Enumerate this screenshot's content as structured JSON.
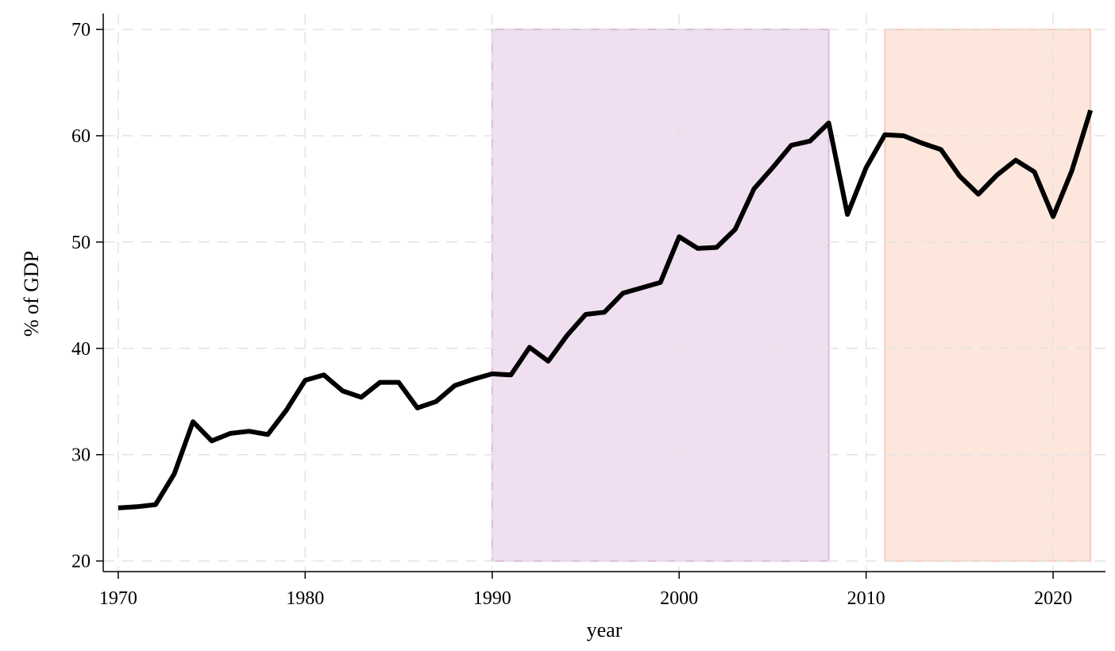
{
  "chart_data": {
    "type": "line",
    "xlabel": "year",
    "ylabel": "% of GDP",
    "xlim": [
      1969.2,
      2022.8
    ],
    "ylim": [
      19.0,
      71.5
    ],
    "xticks": [
      1970,
      1980,
      1990,
      2000,
      2010,
      2020
    ],
    "yticks": [
      20,
      30,
      40,
      50,
      60,
      70
    ],
    "grid": true,
    "grid_style": "dashed",
    "legend": "none",
    "shaded_regions": [
      {
        "x_start": 1990,
        "x_end": 2008,
        "y_start": 20,
        "y_end": 70,
        "color": "#f0dff0",
        "border": "#dcb8dc"
      },
      {
        "x_start": 2011,
        "x_end": 2022,
        "y_start": 20,
        "y_end": 70,
        "color": "#fde6dc",
        "border": "#f5cdbb"
      }
    ],
    "series": [
      {
        "color": "#000000",
        "x": [
          1970,
          1971,
          1972,
          1973,
          1974,
          1975,
          1976,
          1977,
          1978,
          1979,
          1980,
          1981,
          1982,
          1983,
          1984,
          1985,
          1986,
          1987,
          1988,
          1989,
          1990,
          1991,
          1992,
          1993,
          1994,
          1995,
          1996,
          1997,
          1998,
          1999,
          2000,
          2001,
          2002,
          2003,
          2004,
          2005,
          2006,
          2007,
          2008,
          2009,
          2010,
          2011,
          2012,
          2013,
          2014,
          2015,
          2016,
          2017,
          2018,
          2019,
          2020,
          2021,
          2022
        ],
        "y": [
          25.0,
          25.1,
          25.3,
          28.2,
          33.1,
          31.3,
          32.0,
          32.2,
          31.9,
          34.2,
          37.0,
          37.5,
          36.0,
          35.4,
          36.8,
          36.8,
          34.4,
          35.0,
          36.5,
          37.1,
          37.6,
          37.5,
          40.1,
          38.8,
          41.2,
          43.2,
          43.4,
          45.2,
          45.7,
          46.2,
          50.5,
          49.4,
          49.5,
          51.2,
          55.0,
          57.0,
          59.1,
          59.5,
          61.2,
          52.6,
          57.0,
          60.1,
          60.0,
          59.3,
          58.7,
          56.2,
          54.5,
          56.3,
          57.7,
          56.6,
          52.4,
          56.7,
          62.4
        ]
      }
    ]
  }
}
